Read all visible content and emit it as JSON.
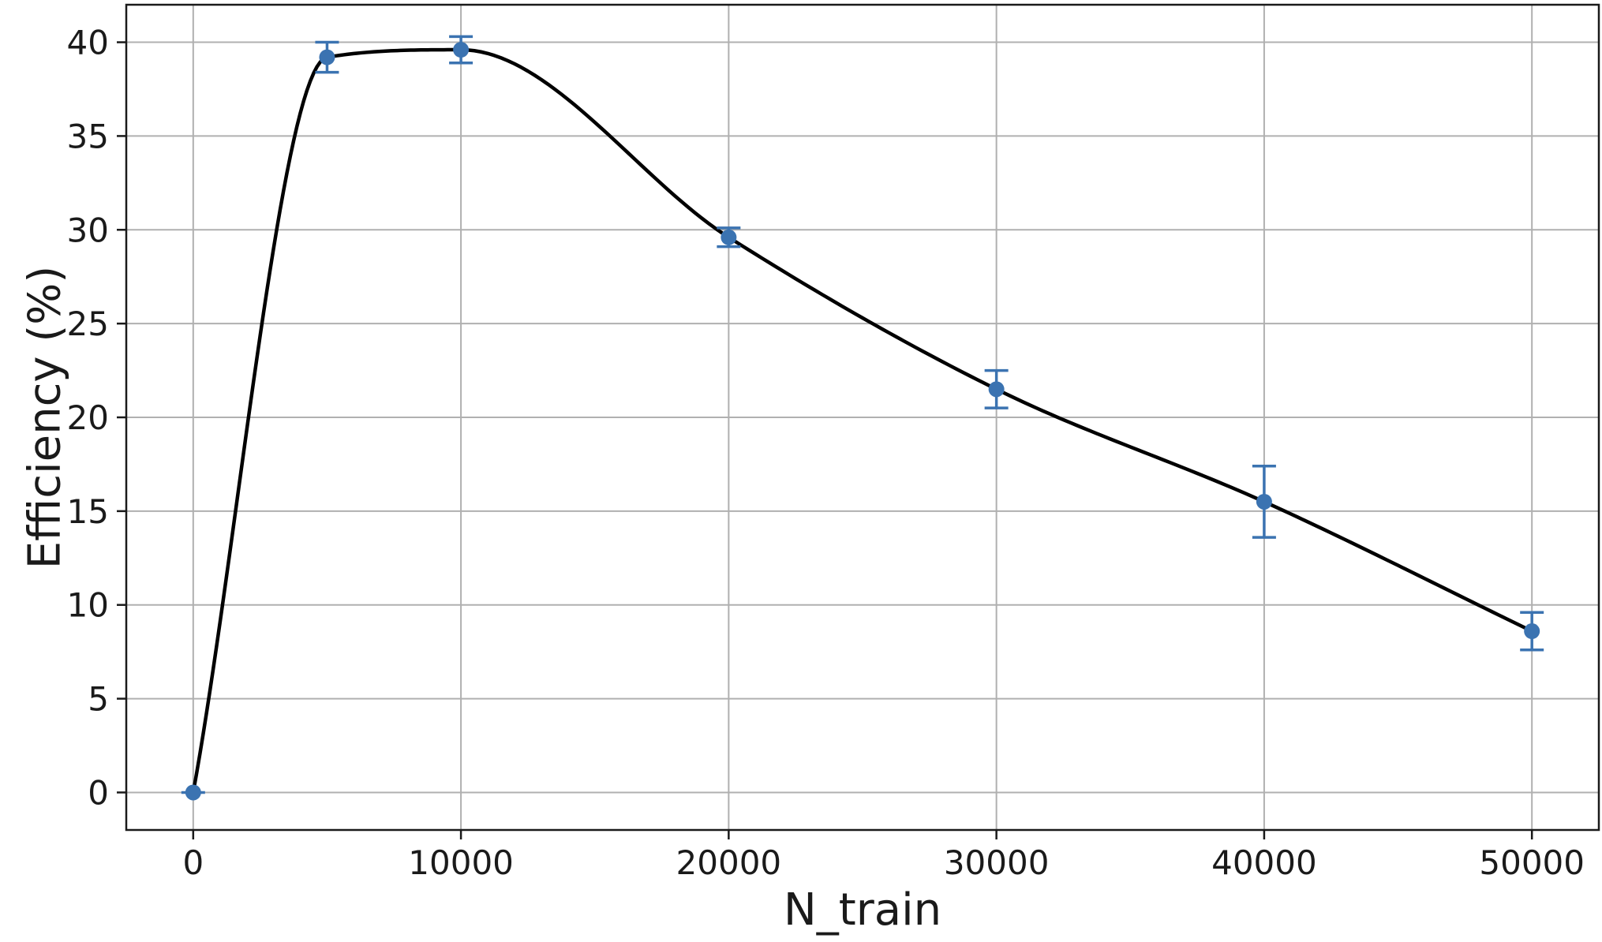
{
  "chart_data": {
    "type": "scatter",
    "title": "",
    "xlabel": "N_train",
    "ylabel": "Efficiency (%)",
    "xlim": [
      -2500,
      52500
    ],
    "ylim": [
      -2,
      42
    ],
    "xticks": [
      0,
      10000,
      20000,
      30000,
      40000,
      50000
    ],
    "yticks": [
      0,
      5,
      10,
      15,
      20,
      25,
      30,
      35,
      40
    ],
    "grid": true,
    "legend": "none",
    "marker_color": "#3b73b1",
    "curve_color": "#000000",
    "series": [
      {
        "x": [
          0,
          5000,
          10000,
          20000,
          30000,
          40000,
          50000
        ],
        "y": [
          0.0,
          39.2,
          39.6,
          29.6,
          21.5,
          15.5,
          8.6
        ],
        "yerr": [
          0.0,
          0.8,
          0.7,
          0.5,
          1.0,
          1.9,
          1.0
        ]
      }
    ],
    "fit_curve": {
      "x": [
        0,
        5000,
        10000,
        20000,
        30000,
        40000,
        50000
      ],
      "y": [
        0.0,
        39.2,
        39.6,
        29.6,
        21.5,
        15.5,
        8.6
      ]
    }
  }
}
